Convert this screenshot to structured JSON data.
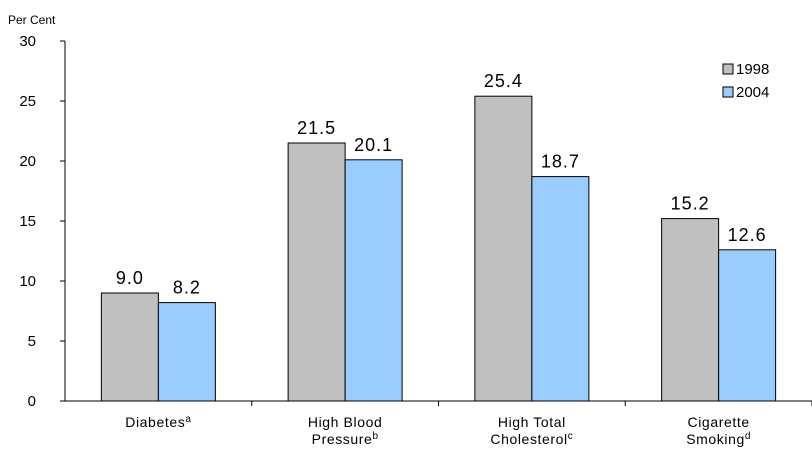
{
  "chart_data": {
    "type": "bar",
    "unit_label": "Per Cent",
    "ylim": [
      0,
      30
    ],
    "yticks": [
      0,
      5,
      10,
      15,
      20,
      25,
      30
    ],
    "grid": false,
    "legend_position": "top-right",
    "categories": [
      {
        "lines": [
          "Diabetes"
        ],
        "superscript": "a"
      },
      {
        "lines": [
          "High Blood",
          "Pressure"
        ],
        "superscript": "b"
      },
      {
        "lines": [
          "High Total",
          "Cholesterol"
        ],
        "superscript": "c"
      },
      {
        "lines": [
          "Cigarette",
          "Smoking"
        ],
        "superscript": "d"
      }
    ],
    "series": [
      {
        "name": "1998",
        "color": "#c0c0c0",
        "values": [
          9.0,
          21.5,
          25.4,
          15.2
        ]
      },
      {
        "name": "2004",
        "color": "#99ccff",
        "values": [
          8.2,
          20.1,
          18.7,
          12.6
        ]
      }
    ]
  }
}
